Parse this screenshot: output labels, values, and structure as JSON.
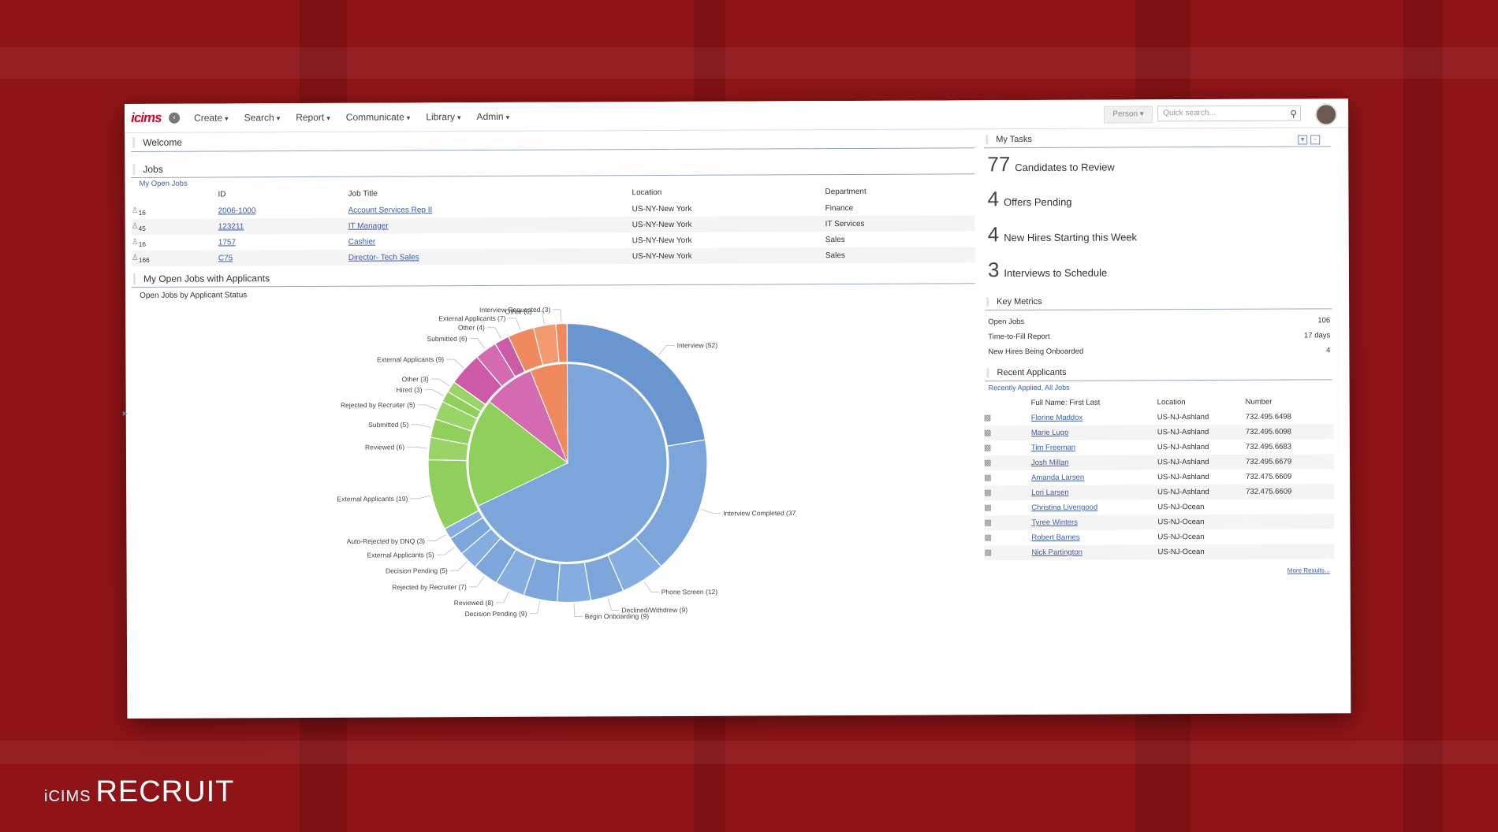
{
  "brand": {
    "small": "iCIMS",
    "large": "RECRUIT"
  },
  "nav": {
    "logo": "icims",
    "menus": [
      "Create",
      "Search",
      "Report",
      "Communicate",
      "Library",
      "Admin"
    ],
    "person_label": "Person",
    "search_placeholder": "Quick search..."
  },
  "welcome": {
    "title": "Welcome"
  },
  "jobs": {
    "title": "Jobs",
    "subtitle": "My Open Jobs",
    "headers": [
      "ID",
      "Job Title",
      "Location",
      "Department"
    ],
    "rows": [
      {
        "count": "16",
        "id": "2006-1000",
        "title": "Account Services Rep II",
        "location": "US-NY-New York",
        "department": "Finance"
      },
      {
        "count": "45",
        "id": "123211",
        "title": "IT Manager",
        "location": "US-NY-New York",
        "department": "IT Services"
      },
      {
        "count": "16",
        "id": "1757",
        "title": "Cashier",
        "location": "US-NY-New York",
        "department": "Sales"
      },
      {
        "count": "166",
        "id": "C75",
        "title": "Director- Tech Sales",
        "location": "US-NY-New York",
        "department": "Sales"
      }
    ]
  },
  "open_jobs": {
    "title": "My Open Jobs with Applicants",
    "subtitle": "Open Jobs by Applicant Status"
  },
  "chart_data": {
    "type": "pie",
    "title": "Open Jobs by Applicant Status",
    "inner": [
      {
        "value": 180,
        "color": "#7ca6da"
      },
      {
        "value": 47,
        "color": "#8fcf5c"
      },
      {
        "value": 22,
        "color": "#d46bb0"
      },
      {
        "value": 16,
        "color": "#f08a5e"
      }
    ],
    "outer": [
      {
        "label": "Interview (52)",
        "value": 52,
        "color": "#6a96cf"
      },
      {
        "label": "Interview Completed (37)",
        "value": 37,
        "color": "#7ca6da"
      },
      {
        "label": "Phone Screen (12)",
        "value": 12,
        "color": "#86addf"
      },
      {
        "label": "Declined/Withdrew (9)",
        "value": 9,
        "color": "#7ca6da"
      },
      {
        "label": "Begin Onboarding (9)",
        "value": 9,
        "color": "#86addf"
      },
      {
        "label": "Decision Pending (9)",
        "value": 9,
        "color": "#7ca6da"
      },
      {
        "label": "Reviewed (8)",
        "value": 8,
        "color": "#86addf"
      },
      {
        "label": "Rejected by Recruiter (7)",
        "value": 7,
        "color": "#7ca6da"
      },
      {
        "label": "Decision Pending (5)",
        "value": 5,
        "color": "#86addf"
      },
      {
        "label": "External Applicants (5)",
        "value": 5,
        "color": "#7ca6da"
      },
      {
        "label": "Auto-Rejected by DNQ (3)",
        "value": 3,
        "color": "#86addf"
      },
      {
        "label": "External Applicants (19)",
        "value": 19,
        "color": "#8fcf5c"
      },
      {
        "label": "Reviewed (6)",
        "value": 6,
        "color": "#9ad468"
      },
      {
        "label": "Submitted (5)",
        "value": 5,
        "color": "#8fcf5c"
      },
      {
        "label": "Rejected by Recruiter (5)",
        "value": 5,
        "color": "#9ad468"
      },
      {
        "label": "Hired (3)",
        "value": 3,
        "color": "#8fcf5c"
      },
      {
        "label": "Other (3)",
        "value": 3,
        "color": "#9ad468"
      },
      {
        "label": "External Applicants (9)",
        "value": 9,
        "color": "#cc5aa6"
      },
      {
        "label": "Submitted (6)",
        "value": 6,
        "color": "#d46bb0"
      },
      {
        "label": "Other (4)",
        "value": 4,
        "color": "#cc5aa6"
      },
      {
        "label": "External Applicants (7)",
        "value": 7,
        "color": "#f08a5e"
      },
      {
        "label": "Other (6)",
        "value": 6,
        "color": "#f39a70"
      },
      {
        "label": "Interview Requested (3)",
        "value": 3,
        "color": "#f08a5e"
      }
    ]
  },
  "tasks": {
    "title": "My Tasks",
    "items": [
      {
        "num": "77",
        "label": "Candidates to Review"
      },
      {
        "num": "4",
        "label": "Offers Pending"
      },
      {
        "num": "4",
        "label": "New Hires Starting this Week"
      },
      {
        "num": "3",
        "label": "Interviews to Schedule"
      }
    ]
  },
  "metrics": {
    "title": "Key Metrics",
    "rows": [
      {
        "label": "Open Jobs",
        "value": "106"
      },
      {
        "label": "Time-to-Fill Report",
        "value": "17 days"
      },
      {
        "label": "New Hires Being Onboarded",
        "value": "4"
      }
    ]
  },
  "recent": {
    "title": "Recent Applicants",
    "subtitle": "Recently Applied, All Jobs",
    "headers": [
      "Full Name: First Last",
      "Location",
      "Number"
    ],
    "rows": [
      {
        "name": "Florine Maddox",
        "location": "US-NJ-Ashland",
        "number": "732.495.6498"
      },
      {
        "name": "Marie Lugo",
        "location": "US-NJ-Ashland",
        "number": "732.495.6098"
      },
      {
        "name": "Tim Freeman",
        "location": "US-NJ-Ashland",
        "number": "732.495.6683"
      },
      {
        "name": "Josh Millan",
        "location": "US-NJ-Ashland",
        "number": "732.495.6679"
      },
      {
        "name": "Amanda Larsen",
        "location": "US-NJ-Ashland",
        "number": "732.475.6609"
      },
      {
        "name": "Lori Larsen",
        "location": "US-NJ-Ashland",
        "number": "732.475.6609"
      },
      {
        "name": "Christina Livengood",
        "location": "US-NJ-Ocean",
        "number": ""
      },
      {
        "name": "Tyree Winters",
        "location": "US-NJ-Ocean",
        "number": ""
      },
      {
        "name": "Robert Barnes",
        "location": "US-NJ-Ocean",
        "number": ""
      },
      {
        "name": "Nick Partington",
        "location": "US-NJ-Ocean",
        "number": ""
      }
    ],
    "more": "More Results..."
  }
}
